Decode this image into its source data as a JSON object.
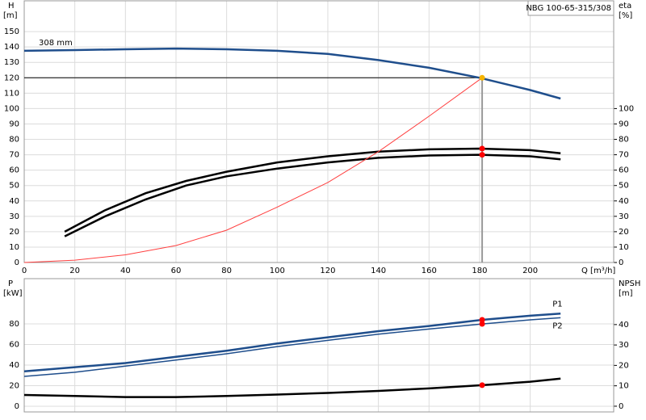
{
  "chart_data": [
    {
      "type": "line",
      "title": "NBG 100-65-315/308",
      "ylabel": "H",
      "yunit": "[m]",
      "y2label": "eta",
      "y2unit": "[%]",
      "xlabel": "Q [m³/h]",
      "xlim": [
        0,
        233
      ],
      "xticks": [
        0,
        20,
        40,
        60,
        80,
        100,
        120,
        140,
        160,
        180,
        200
      ],
      "ylim": [
        0,
        170
      ],
      "yticks": [
        0,
        10,
        20,
        30,
        40,
        50,
        60,
        70,
        80,
        90,
        100,
        110,
        120,
        130,
        140,
        150
      ],
      "y2lim": [
        0,
        170
      ],
      "y2ticks": [
        0,
        10,
        20,
        30,
        40,
        50,
        60,
        70,
        80,
        90,
        100
      ],
      "grid": true,
      "series": [
        {
          "name": "308 mm",
          "color": "#1f4e8c",
          "width": 2.5,
          "x": [
            0,
            20,
            40,
            60,
            80,
            100,
            120,
            140,
            160,
            180,
            200,
            212
          ],
          "values": [
            137.5,
            138,
            138.5,
            139,
            138.5,
            137.5,
            135.5,
            131.5,
            126.5,
            120,
            112,
            106.5
          ]
        },
        {
          "color": "#000000",
          "width": 2.5,
          "axis": "y2",
          "x": [
            16,
            32,
            48,
            64,
            80,
            100,
            120,
            140,
            160,
            180,
            200,
            212
          ],
          "values": [
            20,
            34,
            45,
            53,
            59,
            65,
            69,
            72,
            73.5,
            74,
            73,
            71
          ]
        },
        {
          "color": "#000000",
          "width": 2.5,
          "axis": "y2",
          "x": [
            16,
            32,
            48,
            64,
            80,
            100,
            120,
            140,
            160,
            180,
            200,
            212
          ],
          "values": [
            17,
            30,
            41,
            50,
            56,
            61,
            65,
            68,
            69.5,
            70,
            69,
            67
          ]
        },
        {
          "color": "#ff4040",
          "width": 1,
          "x": [
            0,
            20,
            40,
            60,
            80,
            100,
            120,
            140,
            160,
            181
          ],
          "values": [
            0,
            1.5,
            5,
            11,
            21,
            36,
            52,
            72,
            95,
            120
          ]
        }
      ],
      "markers": [
        {
          "x": 181,
          "y": 120,
          "color": "#f5b400"
        },
        {
          "x": 181,
          "y": 74,
          "color": "#ff0000",
          "axis": "y2"
        },
        {
          "x": 181,
          "y": 70,
          "color": "#ff0000",
          "axis": "y2"
        }
      ]
    },
    {
      "type": "line",
      "ylabel": "P",
      "yunit": "[kW]",
      "y2label": "NPSH",
      "y2unit": "[m]",
      "xlim": [
        0,
        233
      ],
      "xticks": [
        0,
        20,
        40,
        60,
        80,
        100,
        120,
        140,
        160,
        180,
        200
      ],
      "ylim": [
        -5.5,
        124
      ],
      "yticks": [
        0,
        20,
        40,
        60,
        80
      ],
      "y2lim": [
        -2.8,
        62.5
      ],
      "y2ticks": [
        0,
        10,
        20,
        30,
        40
      ],
      "grid": true,
      "series": [
        {
          "name": "P1",
          "color": "#1f4e8c",
          "width": 2.5,
          "x": [
            0,
            20,
            40,
            60,
            80,
            100,
            120,
            140,
            160,
            181,
            200,
            212
          ],
          "values": [
            34,
            38,
            42,
            48,
            54,
            61,
            67,
            73,
            78,
            84,
            88,
            90
          ]
        },
        {
          "name": "P2",
          "color": "#1f4e8c",
          "width": 1.5,
          "x": [
            0,
            20,
            40,
            60,
            80,
            100,
            120,
            140,
            160,
            181,
            200,
            212
          ],
          "values": [
            29,
            33,
            39,
            45,
            51,
            58,
            64,
            70,
            75,
            80,
            84,
            86
          ]
        },
        {
          "color": "#000000",
          "width": 2.5,
          "axis": "y2",
          "x": [
            0,
            20,
            40,
            60,
            80,
            100,
            120,
            140,
            160,
            181,
            200,
            212
          ],
          "values": [
            5.5,
            5,
            4.5,
            4.5,
            5,
            5.7,
            6.5,
            7.5,
            8.7,
            10.3,
            12,
            13.5
          ]
        }
      ],
      "markers": [
        {
          "x": 181,
          "y": 84,
          "color": "#ff0000"
        },
        {
          "x": 181,
          "y": 80,
          "color": "#ff0000"
        },
        {
          "x": 181,
          "y": 10.3,
          "color": "#ff0000",
          "axis": "y2"
        }
      ]
    }
  ]
}
